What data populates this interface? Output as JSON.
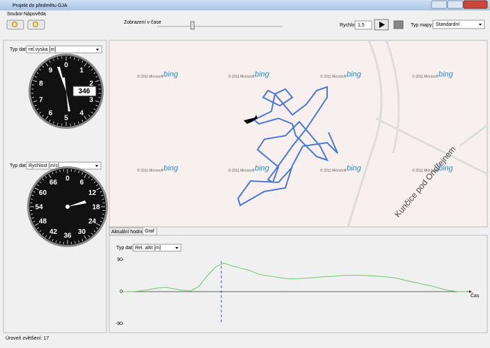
{
  "window": {
    "title": "Projekt do předmětu GJA"
  },
  "menu": [
    "Soubor",
    "Nápověda"
  ],
  "toolbar": {
    "time_label": "Zobrazení v čase",
    "speed_label": "Rychlost",
    "speed_value": "1,5",
    "map_type_label": "Typ mapy:",
    "map_type_value": "Standardní"
  },
  "altimeter": {
    "type_label": "Typ dat:",
    "selected": "rel.vyska [m]",
    "dial": [
      0,
      1,
      2,
      3,
      4,
      5,
      6,
      7,
      8,
      9
    ],
    "readout": "346"
  },
  "speedometer": {
    "type_label": "Typ dat:",
    "selected": "Rychlost [m/s]",
    "dial": [
      0,
      6,
      12,
      18,
      24,
      30,
      36,
      42,
      48,
      54,
      60,
      66
    ]
  },
  "map": {
    "watermark_text": "© 2011 Microsoft",
    "watermark_logo": "bing",
    "place": "Kunčice pod Ondřejnem"
  },
  "tabs": [
    "Aktuální hodnoty",
    "Graf"
  ],
  "graph": {
    "type_label": "Typ dat:",
    "selected": "Rel. altit [m]"
  },
  "chart_data": {
    "type": "line",
    "x_label": "Čas",
    "color": "#6cc86c",
    "values": [
      0,
      0,
      2,
      6,
      10,
      12,
      8,
      4,
      2,
      15,
      45,
      70,
      80,
      72,
      66,
      60,
      50,
      45,
      42,
      38,
      36,
      37,
      38,
      40,
      42,
      43,
      45,
      46,
      46,
      45,
      44,
      42,
      40,
      36,
      30,
      25,
      20,
      15,
      8,
      3,
      0,
      0
    ],
    "ylim": [
      -90,
      90
    ],
    "yticks": [
      90,
      0,
      -90
    ]
  },
  "status": "Úroveň zvětšení: 17"
}
